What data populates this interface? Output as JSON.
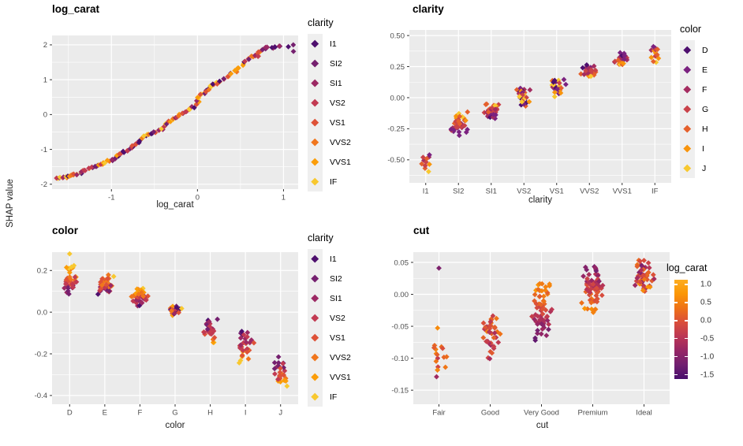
{
  "figure": {
    "ylabel": "SHAP value",
    "background": "#FFFFFF",
    "panel_background": "#EBEBEB",
    "gridline_color": "#FFFFFF",
    "tick_mark_color": "#333333",
    "tick_label_color": "#4D4D4D",
    "legend_key_fill": "#EFEFEF"
  },
  "chart_data": [
    {
      "type": "scatter",
      "title": "log_carat",
      "xlabel": "log_carat",
      "ylabel": "SHAP value",
      "xlim": [
        -1.69,
        1.17
      ],
      "ylim": [
        -2.14,
        2.27
      ],
      "x_ticks": [
        -1,
        0,
        1
      ],
      "x_tick_labels": [
        "-1",
        "0",
        "1"
      ],
      "x_minor": [
        -1.5,
        -0.5,
        0.5
      ],
      "y_ticks": [
        2,
        1,
        0,
        -1,
        -2
      ],
      "y_tick_labels": [
        "2",
        "1",
        "0",
        "-1",
        "-2"
      ],
      "y_minor": [
        1.5,
        0.5,
        -0.5,
        -1.5
      ],
      "legend": {
        "title": "clarity",
        "items": [
          "I1",
          "SI2",
          "SI1",
          "VS2",
          "VS1",
          "VVS2",
          "VVS1",
          "IF"
        ]
      },
      "palette": [
        "#4E0F6E",
        "#75206F",
        "#9C2964",
        "#C23A52",
        "#DE5238",
        "#F0761D",
        "#FB9D09",
        "#F8C82F"
      ],
      "curve_points": [
        [
          -1.62,
          -1.84
        ],
        [
          -1.58,
          -1.81
        ],
        [
          -1.55,
          -1.79
        ],
        [
          -1.52,
          -1.8
        ],
        [
          -1.49,
          -1.77
        ],
        [
          -1.46,
          -1.75
        ],
        [
          -1.43,
          -1.73
        ],
        [
          -1.4,
          -1.71
        ],
        [
          -1.37,
          -1.67
        ],
        [
          -1.34,
          -1.63
        ],
        [
          -1.3,
          -1.6
        ],
        [
          -1.27,
          -1.56
        ],
        [
          -1.23,
          -1.52
        ],
        [
          -1.19,
          -1.48
        ],
        [
          -1.16,
          -1.44
        ],
        [
          -1.12,
          -1.41
        ],
        [
          -1.08,
          -1.38
        ],
        [
          -1.04,
          -1.34
        ],
        [
          -1.0,
          -1.3
        ],
        [
          -0.96,
          -1.25
        ],
        [
          -0.92,
          -1.18
        ],
        [
          -0.89,
          -1.13
        ],
        [
          -0.85,
          -1.08
        ],
        [
          -0.81,
          -1.03
        ],
        [
          -0.78,
          -0.97
        ],
        [
          -0.75,
          -0.91
        ],
        [
          -0.72,
          -0.86
        ],
        [
          -0.69,
          -0.8
        ],
        [
          -0.66,
          -0.74
        ],
        [
          -0.63,
          -0.67
        ],
        [
          -0.6,
          -0.61
        ],
        [
          -0.57,
          -0.57
        ],
        [
          -0.53,
          -0.53
        ],
        [
          -0.49,
          -0.5
        ],
        [
          -0.45,
          -0.46
        ],
        [
          -0.42,
          -0.41
        ],
        [
          -0.39,
          -0.33
        ],
        [
          -0.36,
          -0.26
        ],
        [
          -0.33,
          -0.2
        ],
        [
          -0.29,
          -0.14
        ],
        [
          -0.25,
          -0.07
        ],
        [
          -0.21,
          -0.02
        ],
        [
          -0.17,
          0.03
        ],
        [
          -0.13,
          0.08
        ],
        [
          -0.09,
          0.14
        ],
        [
          -0.05,
          0.21
        ],
        [
          -0.02,
          0.29
        ],
        [
          0.0,
          0.38
        ],
        [
          0.02,
          0.48
        ],
        [
          0.04,
          0.57
        ],
        [
          0.07,
          0.62
        ],
        [
          0.1,
          0.67
        ],
        [
          0.13,
          0.73
        ],
        [
          0.16,
          0.8
        ],
        [
          0.19,
          0.86
        ],
        [
          0.23,
          0.9
        ],
        [
          0.27,
          0.95
        ],
        [
          0.31,
          1.01
        ],
        [
          0.35,
          1.09
        ],
        [
          0.39,
          1.17
        ],
        [
          0.43,
          1.25
        ],
        [
          0.47,
          1.34
        ],
        [
          0.51,
          1.44
        ],
        [
          0.55,
          1.53
        ],
        [
          0.59,
          1.61
        ],
        [
          0.63,
          1.66
        ],
        [
          0.67,
          1.71
        ],
        [
          0.7,
          1.75
        ],
        [
          0.72,
          1.67
        ],
        [
          0.73,
          1.81
        ],
        [
          0.76,
          1.87
        ],
        [
          0.79,
          1.9
        ],
        [
          0.82,
          1.92
        ],
        [
          0.86,
          1.9
        ],
        [
          0.9,
          1.93
        ],
        [
          0.94,
          1.95
        ],
        [
          1.05,
          1.95
        ],
        [
          1.1,
          2.0
        ],
        [
          1.11,
          1.81
        ]
      ]
    },
    {
      "type": "beeswarm",
      "title": "clarity",
      "xlabel": "clarity",
      "ylabel": "SHAP value",
      "categories": [
        "I1",
        "SI2",
        "SI1",
        "VS2",
        "VS1",
        "VVS2",
        "VVS1",
        "IF"
      ],
      "ylim": [
        -0.685,
        0.545
      ],
      "y_ticks": [
        0.5,
        0.25,
        0,
        -0.25,
        -0.5
      ],
      "y_tick_labels": [
        "0.50",
        "0.25",
        "0.00",
        "-0.25",
        "-0.50"
      ],
      "y_minor": [
        0.375,
        0.125,
        -0.125,
        -0.375,
        -0.625
      ],
      "legend": {
        "title": "color",
        "items": [
          "D",
          "E",
          "F",
          "G",
          "H",
          "I",
          "J"
        ]
      },
      "palette": [
        "#4E0F6E",
        "#7B2280",
        "#A42C60",
        "#C9424A",
        "#E5602C",
        "#F8940C",
        "#F8C82F"
      ],
      "clusters": [
        {
          "category": "I1",
          "mean": -0.52,
          "min": -0.63,
          "max": -0.4,
          "n": 11,
          "hw": 0.2,
          "mix": 1
        },
        {
          "category": "SI2",
          "mean": -0.24,
          "min": -0.33,
          "max": -0.1,
          "n": 40,
          "hw": 0.3,
          "mix": -1
        },
        {
          "category": "SI1",
          "mean": -0.12,
          "min": -0.18,
          "max": -0.03,
          "n": 38,
          "hw": 0.3,
          "mix": -1
        },
        {
          "category": "VS2",
          "mean": 0.03,
          "min": -0.07,
          "max": 0.1,
          "n": 30,
          "hw": 0.3,
          "mix": 0
        },
        {
          "category": "VS1",
          "mean": 0.1,
          "min": 0.0,
          "max": 0.17,
          "n": 30,
          "hw": 0.3,
          "mix": 0
        },
        {
          "category": "VVS2",
          "mean": 0.21,
          "min": 0.13,
          "max": 0.28,
          "n": 30,
          "hw": 0.3,
          "mix": 1
        },
        {
          "category": "VVS1",
          "mean": 0.3,
          "min": 0.22,
          "max": 0.38,
          "n": 22,
          "hw": 0.28,
          "mix": 1
        },
        {
          "category": "IF",
          "mean": 0.37,
          "min": 0.27,
          "max": 0.48,
          "n": 14,
          "hw": 0.24,
          "mix": 1
        }
      ]
    },
    {
      "type": "beeswarm",
      "title": "color",
      "xlabel": "color",
      "ylabel": "SHAP value",
      "categories": [
        "D",
        "E",
        "F",
        "G",
        "H",
        "I",
        "J"
      ],
      "ylim": [
        -0.442,
        0.288
      ],
      "y_ticks": [
        0.2,
        0,
        -0.2,
        -0.4
      ],
      "y_tick_labels": [
        "0.2",
        "0.0",
        "-0.2",
        "-0.4"
      ],
      "y_minor": [
        0.1,
        -0.1,
        -0.3
      ],
      "legend": {
        "title": "clarity",
        "items": [
          "I1",
          "SI2",
          "SI1",
          "VS2",
          "VS1",
          "VVS2",
          "VVS1",
          "IF"
        ]
      },
      "palette": [
        "#4E0F6E",
        "#75206F",
        "#9C2964",
        "#C23A52",
        "#DE5238",
        "#F0761D",
        "#FB9D09",
        "#F8C82F"
      ],
      "clusters": [
        {
          "category": "D",
          "mean": 0.15,
          "min": 0.07,
          "max": 0.23,
          "n": 40,
          "hw": 0.3,
          "mix": -1,
          "extra": [
            [
              0.0,
              0.28,
              7
            ]
          ]
        },
        {
          "category": "E",
          "mean": 0.115,
          "min": 0.06,
          "max": 0.19,
          "n": 38,
          "hw": 0.3,
          "mix": -1
        },
        {
          "category": "F",
          "mean": 0.065,
          "min": 0.02,
          "max": 0.12,
          "n": 38,
          "hw": 0.3,
          "mix": -1
        },
        {
          "category": "G",
          "mean": 0.005,
          "min": -0.03,
          "max": 0.04,
          "n": 24,
          "hw": 0.28,
          "mix": 0
        },
        {
          "category": "H",
          "mean": -0.09,
          "min": -0.16,
          "max": -0.03,
          "n": 34,
          "hw": 0.3,
          "mix": 1
        },
        {
          "category": "I",
          "mean": -0.18,
          "min": -0.26,
          "max": -0.07,
          "n": 32,
          "hw": 0.28,
          "mix": 1
        },
        {
          "category": "J",
          "mean": -0.29,
          "min": -0.39,
          "max": -0.2,
          "n": 28,
          "hw": 0.26,
          "mix": 1
        }
      ]
    },
    {
      "type": "beeswarm-continuous",
      "title": "cut",
      "xlabel": "cut",
      "ylabel": "SHAP value",
      "categories": [
        "Fair",
        "Good",
        "Very Good",
        "Premium",
        "Ideal"
      ],
      "ylim": [
        -0.172,
        0.066
      ],
      "y_ticks": [
        0.05,
        0,
        -0.05,
        -0.1,
        -0.15
      ],
      "y_tick_labels": [
        "0.05",
        "0.00",
        "-0.05",
        "-0.10",
        "-0.15"
      ],
      "y_minor": [
        0.025,
        -0.025,
        -0.075,
        -0.125
      ],
      "colorbar": {
        "title": "log_carat",
        "domain": [
          -1.62,
          1.13
        ],
        "ticks": [
          1.0,
          0.5,
          0.0,
          -0.5,
          -1.0,
          -1.5
        ],
        "tick_labels": [
          "1.0",
          "0.5",
          "0.0",
          "-0.5",
          "-1.0",
          "-1.5"
        ],
        "gradient_bottom_to_top": [
          "#480D6C",
          "#701F70",
          "#972665",
          "#BC3754",
          "#D94E3B",
          "#EE7118",
          "#FB9706",
          "#FCAD21"
        ]
      },
      "clusters": [
        {
          "category": "Fair",
          "mean": -0.095,
          "min": -0.155,
          "max": -0.035,
          "n": 17,
          "hw": 0.18,
          "carat_range": [
            -0.7,
            0.7
          ],
          "corr": 0.1,
          "extra": [
            [
              0.0,
              0.041,
              -1.1
            ]
          ]
        },
        {
          "category": "Good",
          "mean": -0.065,
          "min": -0.115,
          "max": -0.018,
          "n": 38,
          "hw": 0.24,
          "carat_range": [
            -1.3,
            0.9
          ],
          "corr": 0.45
        },
        {
          "category": "Very Good",
          "mean": -0.028,
          "min": -0.075,
          "max": 0.02,
          "n": 65,
          "hw": 0.26,
          "carat_range": [
            -1.55,
            1.0
          ],
          "corr": 0.8
        },
        {
          "category": "Premium",
          "mean": 0.015,
          "min": -0.032,
          "max": 0.05,
          "n": 65,
          "hw": 0.26,
          "carat_range": [
            -1.55,
            1.0
          ],
          "corr": -0.75
        },
        {
          "category": "Ideal",
          "mean": 0.032,
          "min": -0.002,
          "max": 0.06,
          "n": 55,
          "hw": 0.24,
          "carat_range": [
            -1.4,
            0.9
          ],
          "corr": -0.3
        }
      ]
    }
  ]
}
